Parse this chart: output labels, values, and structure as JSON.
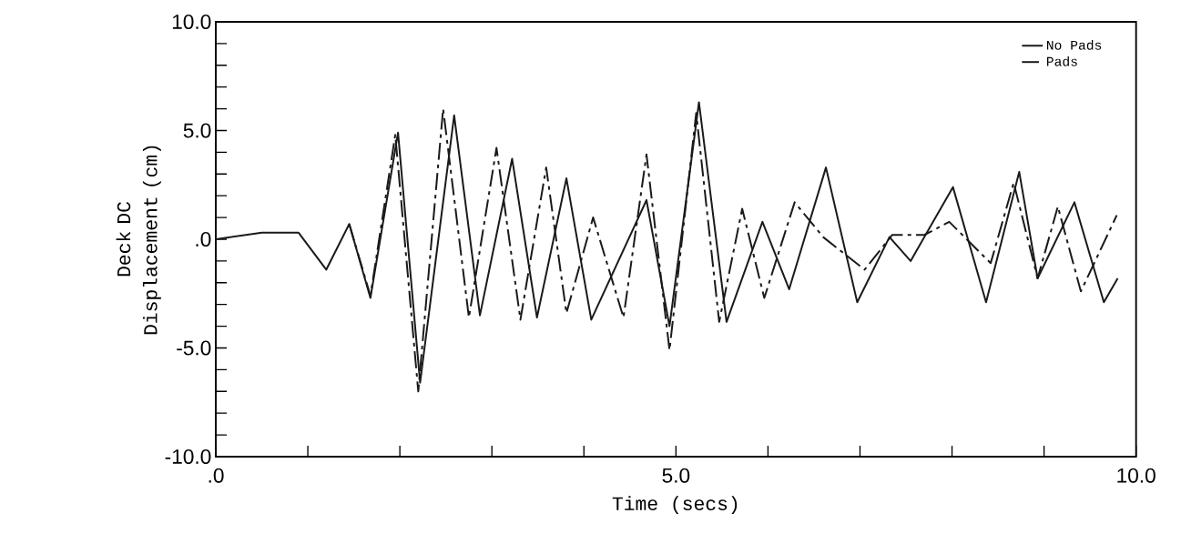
{
  "chart_data": {
    "type": "line",
    "xlabel": "Time (secs)",
    "ylabel": "Deck DC Displacement (cm)",
    "xlim": [
      0,
      10
    ],
    "ylim": [
      -10,
      10
    ],
    "xticks": [
      {
        "value": 0,
        "label": ".0"
      },
      {
        "value": 1,
        "label": null
      },
      {
        "value": 2,
        "label": null
      },
      {
        "value": 3,
        "label": null
      },
      {
        "value": 4,
        "label": null
      },
      {
        "value": 5,
        "label": "5.0"
      },
      {
        "value": 6,
        "label": null
      },
      {
        "value": 7,
        "label": null
      },
      {
        "value": 8,
        "label": null
      },
      {
        "value": 9,
        "label": null
      },
      {
        "value": 10,
        "label": "10.0"
      }
    ],
    "yticks": [
      {
        "value": -10,
        "label": "-10.0"
      },
      {
        "value": -9,
        "label": null
      },
      {
        "value": -8,
        "label": null
      },
      {
        "value": -7,
        "label": null
      },
      {
        "value": -6,
        "label": null
      },
      {
        "value": -5,
        "label": "-5.0"
      },
      {
        "value": -4,
        "label": null
      },
      {
        "value": -3,
        "label": null
      },
      {
        "value": -2,
        "label": null
      },
      {
        "value": -1,
        "label": null
      },
      {
        "value": 0,
        "label": ".0"
      },
      {
        "value": 1,
        "label": null
      },
      {
        "value": 2,
        "label": null
      },
      {
        "value": 3,
        "label": null
      },
      {
        "value": 4,
        "label": null
      },
      {
        "value": 5,
        "label": "5.0"
      },
      {
        "value": 6,
        "label": null
      },
      {
        "value": 7,
        "label": null
      },
      {
        "value": 8,
        "label": null
      },
      {
        "value": 9,
        "label": null
      },
      {
        "value": 10,
        "label": "10.0"
      }
    ],
    "legend": "top right",
    "series": [
      {
        "name": "No Pads",
        "color": "#1a1a1a",
        "line_style": "solid",
        "x": [
          0,
          0.5,
          0.9,
          1.2,
          1.45,
          1.68,
          1.98,
          2.22,
          2.59,
          2.87,
          3.22,
          3.49,
          3.81,
          4.08,
          4.68,
          4.93,
          5.25,
          5.55,
          5.94,
          6.23,
          6.63,
          6.97,
          7.32,
          7.55,
          8.01,
          8.37,
          8.73,
          8.93,
          9.33,
          9.65,
          9.8
        ],
        "values": [
          0,
          0.3,
          0.3,
          -1.4,
          0.7,
          -2.7,
          4.9,
          -6.6,
          5.7,
          -3.5,
          3.7,
          -3.6,
          2.8,
          -3.7,
          1.8,
          -4.0,
          6.3,
          -3.8,
          0.8,
          -2.3,
          3.3,
          -2.9,
          0.1,
          -1.0,
          2.4,
          -2.9,
          3.1,
          -1.8,
          1.7,
          -2.9,
          -1.8
        ]
      },
      {
        "name": "Pads",
        "color": "#1a1a1a",
        "line_style": "dashed",
        "x": [
          1.45,
          1.68,
          1.95,
          2.2,
          2.47,
          2.75,
          3.05,
          3.31,
          3.59,
          3.81,
          4.1,
          4.43,
          4.68,
          4.93,
          5.22,
          5.47,
          5.72,
          5.96,
          6.29,
          6.6,
          7.05,
          7.35,
          7.7,
          7.97,
          8.42,
          8.67,
          8.93,
          9.15,
          9.4,
          9.79
        ],
        "values": [
          0.7,
          -2.6,
          4.8,
          -7.0,
          6.0,
          -3.6,
          4.2,
          -3.7,
          3.3,
          -3.4,
          1.0,
          -3.6,
          3.9,
          -5.1,
          5.8,
          -3.8,
          1.4,
          -2.7,
          1.7,
          0.1,
          -1.4,
          0.2,
          0.2,
          0.8,
          -1.1,
          2.6,
          -1.8,
          1.5,
          -2.4,
          1.1
        ]
      }
    ]
  }
}
